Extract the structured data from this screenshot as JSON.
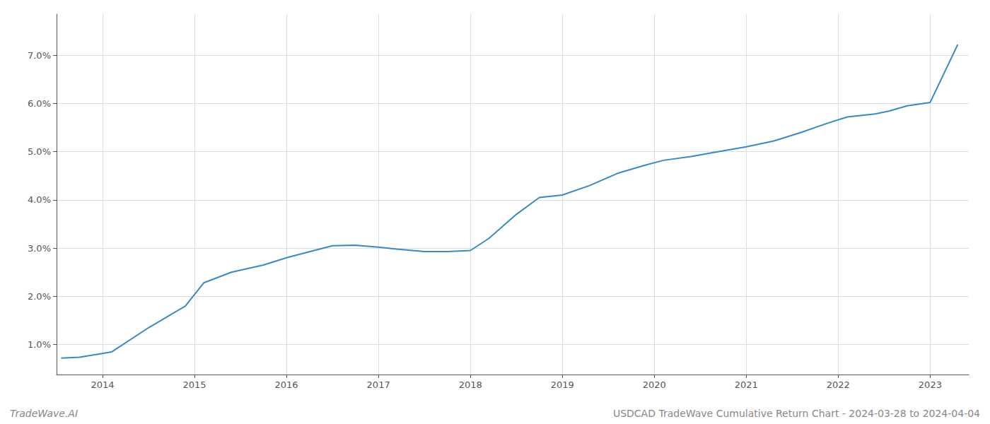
{
  "chart_data": {
    "type": "line",
    "x": [
      2013.55,
      2013.75,
      2014.1,
      2014.5,
      2014.9,
      2015.1,
      2015.4,
      2015.75,
      2016.0,
      2016.3,
      2016.5,
      2016.75,
      2017.0,
      2017.2,
      2017.5,
      2017.75,
      2018.0,
      2018.2,
      2018.5,
      2018.75,
      2019.0,
      2019.3,
      2019.6,
      2019.9,
      2020.1,
      2020.4,
      2020.7,
      2021.0,
      2021.3,
      2021.6,
      2021.9,
      2022.1,
      2022.4,
      2022.55,
      2022.75,
      2023.0,
      2023.3
    ],
    "values": [
      0.72,
      0.74,
      0.85,
      1.35,
      1.8,
      2.28,
      2.5,
      2.65,
      2.8,
      2.95,
      3.05,
      3.06,
      3.02,
      2.98,
      2.93,
      2.93,
      2.95,
      3.2,
      3.7,
      4.05,
      4.1,
      4.3,
      4.55,
      4.72,
      4.82,
      4.9,
      5.0,
      5.1,
      5.22,
      5.4,
      5.6,
      5.72,
      5.78,
      5.84,
      5.95,
      6.02,
      7.22
    ],
    "color": "#3a8abf",
    "xlim": [
      2013.5,
      2023.42
    ],
    "xticks": [
      2014,
      2015,
      2016,
      2017,
      2018,
      2019,
      2020,
      2021,
      2022,
      2023
    ],
    "ylim": [
      0.38,
      7.85
    ],
    "yticks": [
      {
        "value": 1.0,
        "label": "1.0%"
      },
      {
        "value": 2.0,
        "label": "2.0%"
      },
      {
        "value": 3.0,
        "label": "3.0%"
      },
      {
        "value": 4.0,
        "label": "4.0%"
      },
      {
        "value": 5.0,
        "label": "5.0%"
      },
      {
        "value": 6.0,
        "label": "6.0%"
      },
      {
        "value": 7.0,
        "label": "7.0%"
      }
    ],
    "grid": true,
    "annotations": [
      "TradeWave.AI",
      "USDCAD TradeWave Cumulative Return Chart - 2024-03-28 to 2024-04-04"
    ]
  }
}
